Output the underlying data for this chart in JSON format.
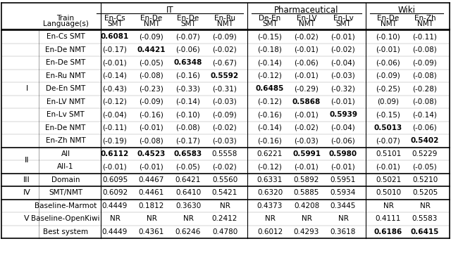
{
  "title": "",
  "col_groups": [
    {
      "label": "IT",
      "cols": [
        0,
        1,
        2,
        3
      ]
    },
    {
      "label": "Pharmaceutical",
      "cols": [
        4,
        5,
        6
      ]
    },
    {
      "label": "Wiki",
      "cols": [
        7,
        8
      ]
    }
  ],
  "col_headers_line1": [
    "En-Cs",
    "En-De",
    "En-De",
    "En-Ru",
    "De-En",
    "En-LV",
    "En-Lv",
    "En-De",
    "En-Zh"
  ],
  "col_headers_line2": [
    "SMT",
    "NMT",
    "SMT",
    "NMT",
    "SMT",
    "NMT",
    "SMT",
    "NMT",
    "NMT"
  ],
  "row_groups": [
    {
      "group_label": "I",
      "rows": [
        {
          "label": "En-Cs SMT",
          "values": [
            "0.6081",
            "(-0.09)",
            "(-0.07)",
            "(-0.09)",
            "(-0.15)",
            "(-0.02)",
            "(-0.01)",
            "(-0.10)",
            "(-0.11)"
          ],
          "bold": [
            0
          ]
        },
        {
          "label": "En-De NMT",
          "values": [
            "(-0.17)",
            "0.4421",
            "(-0.06)",
            "(-0.02)",
            "(-0.18)",
            "(-0.01)",
            "(-0.02)",
            "(-0.01)",
            "(-0.08)"
          ],
          "bold": [
            1
          ]
        },
        {
          "label": "En-De SMT",
          "values": [
            "(-0.01)",
            "(-0.05)",
            "0.6348",
            "(-0.67)",
            "(-0.14)",
            "(-0.06)",
            "(-0.04)",
            "(-0.06)",
            "(-0.09)"
          ],
          "bold": [
            2
          ]
        },
        {
          "label": "En-Ru NMT",
          "values": [
            "(-0.14)",
            "(-0.08)",
            "(-0.16)",
            "0.5592",
            "(-0.12)",
            "(-0.01)",
            "(-0.03)",
            "(-0.09)",
            "(-0.08)"
          ],
          "bold": [
            3
          ]
        },
        {
          "label": "De-En SMT",
          "values": [
            "(-0.43)",
            "(-0.23)",
            "(-0.33)",
            "(-0.31)",
            "0.6485",
            "(-0.29)",
            "(-0.32)",
            "(-0.25)",
            "(-0.28)"
          ],
          "bold": [
            4
          ]
        },
        {
          "label": "En-LV NMT",
          "values": [
            "(-0.12)",
            "(-0.09)",
            "(-0.14)",
            "(-0.03)",
            "(-0.12)",
            "0.5868",
            "(-0.01)",
            "(0.09)",
            "(-0.08)"
          ],
          "bold": [
            5
          ]
        },
        {
          "label": "En-Lv SMT",
          "values": [
            "(-0.04)",
            "(-0.16)",
            "(-0.10)",
            "(-0.09)",
            "(-0.16)",
            "(-0.01)",
            "0.5939",
            "(-0.15)",
            "(-0.14)"
          ],
          "bold": [
            6
          ]
        },
        {
          "label": "En-De NMT",
          "values": [
            "(-0.11)",
            "(-0.01)",
            "(-0.08)",
            "(-0.02)",
            "(-0.14)",
            "(-0.02)",
            "(-0.04)",
            "0.5013",
            "(-0.06)"
          ],
          "bold": [
            7
          ]
        },
        {
          "label": "En-Zh NMT",
          "values": [
            "(-0.19)",
            "(-0.08)",
            "(-0.17)",
            "(-0.03)",
            "(-0.16)",
            "(-0.03)",
            "(-0.06)",
            "(-0.07)",
            "0.5402"
          ],
          "bold": [
            8
          ]
        }
      ]
    },
    {
      "group_label": "II",
      "rows": [
        {
          "label": "All",
          "values": [
            "0.6112",
            "0.4523",
            "0.6583",
            "0.5558",
            "0.6221",
            "0.5991",
            "0.5980",
            "0.5101",
            "0.5229"
          ],
          "bold": [
            0,
            1,
            2,
            5,
            6
          ]
        },
        {
          "label": "All-1",
          "values": [
            "(-0.01)",
            "(-0.01)",
            "(-0.05)",
            "(-0.02)",
            "(-0.12)",
            "(-0.01)",
            "(-0.01)",
            "(-0.01)",
            "(-0.05)"
          ],
          "bold": []
        }
      ]
    },
    {
      "group_label": "III",
      "rows": [
        {
          "label": "Domain",
          "values": [
            "0.6095",
            "0.4467",
            "0.6421",
            "0.5560",
            "0.6331",
            "0.5892",
            "0.5951",
            "0.5021",
            "0.5210"
          ],
          "bold": []
        }
      ]
    },
    {
      "group_label": "IV",
      "rows": [
        {
          "label": "SMT/NMT",
          "values": [
            "0.6092",
            "0.4461",
            "0.6410",
            "0.5421",
            "0.6320",
            "0.5885",
            "0.5934",
            "0.5010",
            "0.5205"
          ],
          "bold": []
        }
      ]
    },
    {
      "group_label": "V",
      "rows": [
        {
          "label": "Baseline-Marmot",
          "values": [
            "0.4449",
            "0.1812",
            "0.3630",
            "NR",
            "0.4373",
            "0.4208",
            "0.3445",
            "NR",
            "NR"
          ],
          "bold": []
        },
        {
          "label": "Baseline-OpenKiwi",
          "values": [
            "NR",
            "NR",
            "NR",
            "0.2412",
            "NR",
            "NR",
            "NR",
            "0.4111",
            "0.5583"
          ],
          "bold": []
        },
        {
          "label": "Best system",
          "values": [
            "0.4449",
            "0.4361",
            "0.6246",
            "0.4780",
            "0.6012",
            "0.4293",
            "0.3618",
            "0.6186",
            "0.6415"
          ],
          "bold": [
            7,
            8
          ]
        }
      ]
    }
  ],
  "bg_color": "#ffffff",
  "text_color": "#000000",
  "header_bg": "#ffffff",
  "line_color": "#000000",
  "font_size": 7.5,
  "header_font_size": 8.0
}
